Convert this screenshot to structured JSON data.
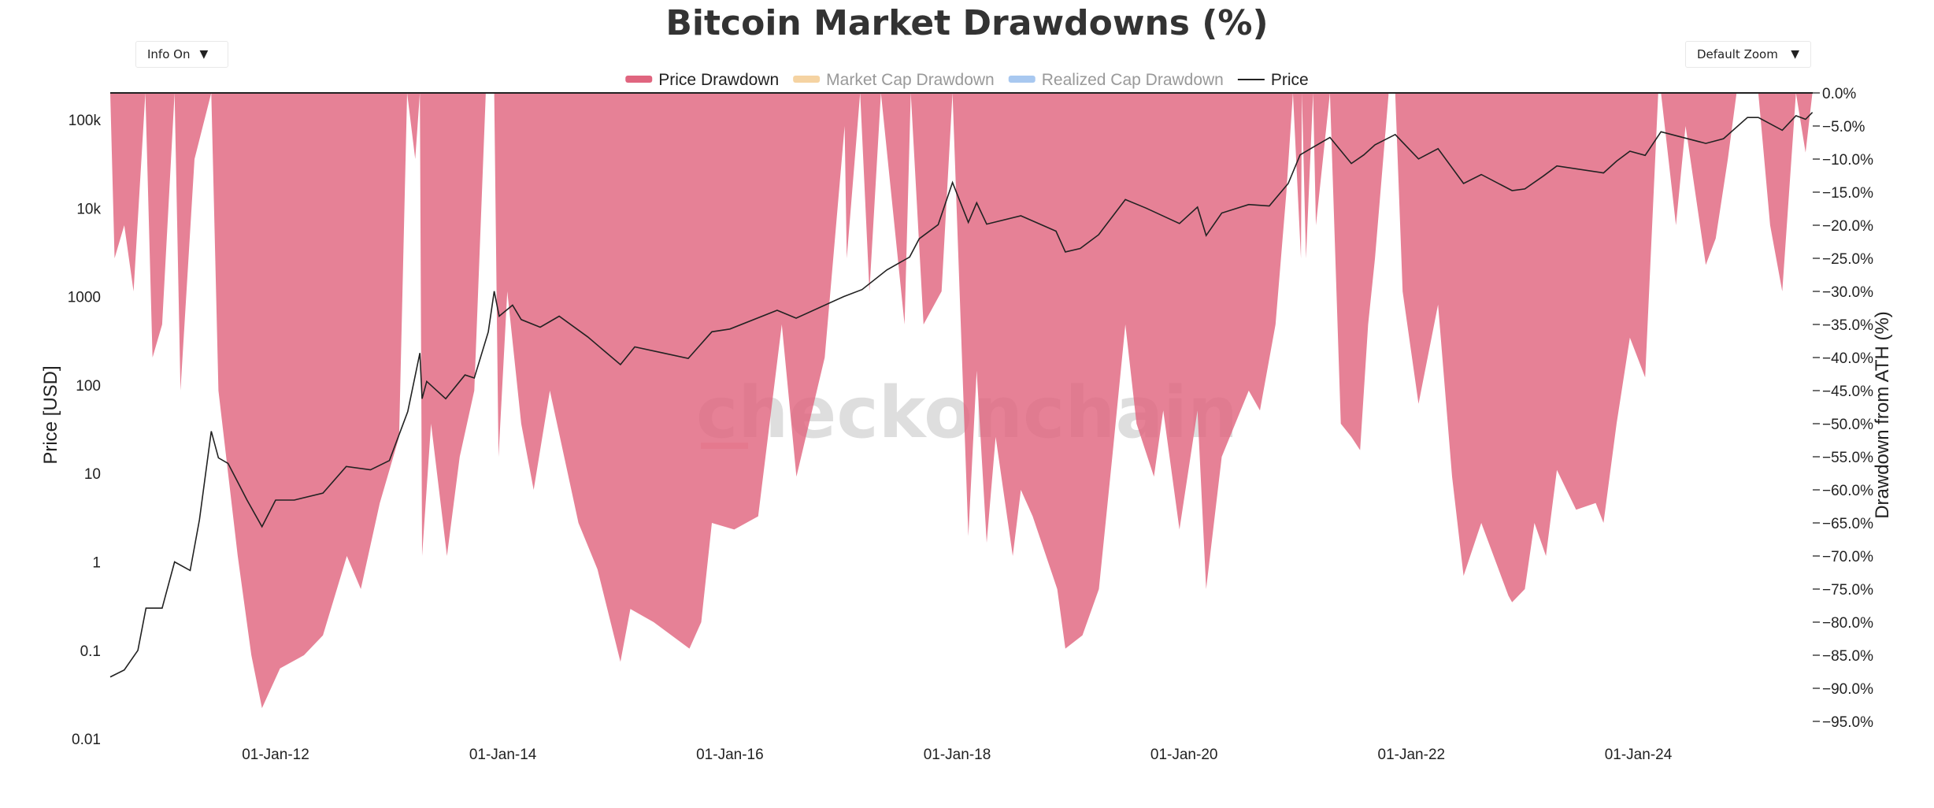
{
  "controls": {
    "info_label": "Info On",
    "zoom_label": "Default Zoom",
    "caret": "▼"
  },
  "watermark": "checkonchain",
  "colors": {
    "drawdown_fill": "#e0657f",
    "market_cap": "#f5d3a2",
    "realized_cap": "#a8c8f0",
    "price_line": "#222222",
    "axis": "#222222"
  },
  "chart_data": {
    "type": "area",
    "title": "Bitcoin Market Drawdowns (%)",
    "legend_position": "top-center",
    "legend": [
      {
        "name": "Price Drawdown",
        "kind": "area",
        "color": "#e0657f",
        "active": true
      },
      {
        "name": "Market Cap Drawdown",
        "kind": "area",
        "color": "#f5d3a2",
        "active": false
      },
      {
        "name": "Realized Cap Drawdown",
        "kind": "area",
        "color": "#a8c8f0",
        "active": false
      },
      {
        "name": "Price",
        "kind": "line",
        "color": "#222222",
        "active": true
      }
    ],
    "x_axis": {
      "type": "date",
      "range": [
        "2010-07-18",
        "2025-07-15"
      ],
      "ticks": [
        {
          "date": "2012-01-01",
          "label": "01-Jan-12"
        },
        {
          "date": "2014-01-01",
          "label": "01-Jan-14"
        },
        {
          "date": "2016-01-01",
          "label": "01-Jan-16"
        },
        {
          "date": "2018-01-01",
          "label": "01-Jan-18"
        },
        {
          "date": "2020-01-01",
          "label": "01-Jan-20"
        },
        {
          "date": "2022-01-01",
          "label": "01-Jan-22"
        },
        {
          "date": "2024-01-01",
          "label": "01-Jan-24"
        }
      ]
    },
    "y_left": {
      "label": "Price [USD]",
      "scale": "log",
      "range": [
        0.01,
        200000
      ],
      "ticks": [
        {
          "value": 100000,
          "label": "100k"
        },
        {
          "value": 10000,
          "label": "10k"
        },
        {
          "value": 1000,
          "label": "1000"
        },
        {
          "value": 100,
          "label": "100"
        },
        {
          "value": 10,
          "label": "10"
        },
        {
          "value": 1,
          "label": "1"
        },
        {
          "value": 0.1,
          "label": "0.1"
        },
        {
          "value": 0.01,
          "label": "0.01"
        }
      ]
    },
    "y_right": {
      "label": "Drawdown from ATH (%)",
      "scale": "linear",
      "range": [
        -100,
        0
      ],
      "ticks": [
        {
          "value": 0,
          "label": "0.0%"
        },
        {
          "value": -5,
          "label": "−5.0%"
        },
        {
          "value": -10,
          "label": "−10.0%"
        },
        {
          "value": -15,
          "label": "−15.0%"
        },
        {
          "value": -20,
          "label": "−20.0%"
        },
        {
          "value": -25,
          "label": "−25.0%"
        },
        {
          "value": -30,
          "label": "−30.0%"
        },
        {
          "value": -35,
          "label": "−35.0%"
        },
        {
          "value": -40,
          "label": "−40.0%"
        },
        {
          "value": -45,
          "label": "−45.0%"
        },
        {
          "value": -50,
          "label": "−50.0%"
        },
        {
          "value": -55,
          "label": "−55.0%"
        },
        {
          "value": -60,
          "label": "−60.0%"
        },
        {
          "value": -65,
          "label": "−65.0%"
        },
        {
          "value": -70,
          "label": "−70.0%"
        },
        {
          "value": -75,
          "label": "−75.0%"
        },
        {
          "value": -80,
          "label": "−80.0%"
        },
        {
          "value": -85,
          "label": "−85.0%"
        },
        {
          "value": -90,
          "label": "−90.0%"
        },
        {
          "value": -95,
          "label": "−95.0%"
        }
      ]
    },
    "series": [
      {
        "name": "Price",
        "axis": "left",
        "points": [
          [
            "2010-07-18",
            0.05
          ],
          [
            "2010-09-01",
            0.06
          ],
          [
            "2010-10-15",
            0.1
          ],
          [
            "2010-11-10",
            0.3
          ],
          [
            "2011-01-01",
            0.3
          ],
          [
            "2011-02-10",
            1.0
          ],
          [
            "2011-04-01",
            0.8
          ],
          [
            "2011-05-01",
            3
          ],
          [
            "2011-06-08",
            30
          ],
          [
            "2011-07-01",
            15
          ],
          [
            "2011-08-01",
            13
          ],
          [
            "2011-09-01",
            8
          ],
          [
            "2011-10-01",
            5
          ],
          [
            "2011-11-18",
            2.5
          ],
          [
            "2012-01-01",
            5
          ],
          [
            "2012-03-01",
            5
          ],
          [
            "2012-06-01",
            6
          ],
          [
            "2012-08-15",
            12
          ],
          [
            "2012-11-01",
            11
          ],
          [
            "2013-01-01",
            14
          ],
          [
            "2013-03-01",
            50
          ],
          [
            "2013-04-09",
            230
          ],
          [
            "2013-04-16",
            70
          ],
          [
            "2013-05-01",
            110
          ],
          [
            "2013-07-01",
            70
          ],
          [
            "2013-09-01",
            130
          ],
          [
            "2013-10-01",
            120
          ],
          [
            "2013-11-15",
            400
          ],
          [
            "2013-12-04",
            1150
          ],
          [
            "2013-12-20",
            600
          ],
          [
            "2014-02-01",
            800
          ],
          [
            "2014-03-01",
            550
          ],
          [
            "2014-05-01",
            450
          ],
          [
            "2014-07-01",
            600
          ],
          [
            "2014-10-01",
            350
          ],
          [
            "2015-01-14",
            170
          ],
          [
            "2015-03-01",
            270
          ],
          [
            "2015-06-01",
            230
          ],
          [
            "2015-08-20",
            200
          ],
          [
            "2015-11-04",
            400
          ],
          [
            "2016-01-01",
            430
          ],
          [
            "2016-06-01",
            700
          ],
          [
            "2016-08-01",
            570
          ],
          [
            "2017-01-01",
            1000
          ],
          [
            "2017-03-01",
            1200
          ],
          [
            "2017-05-20",
            2000
          ],
          [
            "2017-08-01",
            2800
          ],
          [
            "2017-09-01",
            4500
          ],
          [
            "2017-11-01",
            6500
          ],
          [
            "2017-12-17",
            19500
          ],
          [
            "2018-02-06",
            6900
          ],
          [
            "2018-03-05",
            11500
          ],
          [
            "2018-04-06",
            6600
          ],
          [
            "2018-07-25",
            8200
          ],
          [
            "2018-11-15",
            5500
          ],
          [
            "2018-12-15",
            3200
          ],
          [
            "2019-02-01",
            3500
          ],
          [
            "2019-04-01",
            5000
          ],
          [
            "2019-06-26",
            12500
          ],
          [
            "2019-09-01",
            10000
          ],
          [
            "2019-12-17",
            6700
          ],
          [
            "2020-02-13",
            10300
          ],
          [
            "2020-03-12",
            4900
          ],
          [
            "2020-05-01",
            8800
          ],
          [
            "2020-07-27",
            11000
          ],
          [
            "2020-10-01",
            10600
          ],
          [
            "2020-12-01",
            19000
          ],
          [
            "2021-01-08",
            40000
          ],
          [
            "2021-02-15",
            48000
          ],
          [
            "2021-04-14",
            63000
          ],
          [
            "2021-06-22",
            32000
          ],
          [
            "2021-08-01",
            40000
          ],
          [
            "2021-09-06",
            52000
          ],
          [
            "2021-11-10",
            68000
          ],
          [
            "2022-01-24",
            36000
          ],
          [
            "2022-03-28",
            47000
          ],
          [
            "2022-06-18",
            19000
          ],
          [
            "2022-08-14",
            24000
          ],
          [
            "2022-11-21",
            15800
          ],
          [
            "2023-01-01",
            16500
          ],
          [
            "2023-03-01",
            23000
          ],
          [
            "2023-04-14",
            30000
          ],
          [
            "2023-09-11",
            25000
          ],
          [
            "2023-10-23",
            34000
          ],
          [
            "2023-12-05",
            44000
          ],
          [
            "2024-01-23",
            39500
          ],
          [
            "2024-03-14",
            73000
          ],
          [
            "2024-08-05",
            54000
          ],
          [
            "2024-10-01",
            61000
          ],
          [
            "2024-12-17",
            106000
          ],
          [
            "2025-01-21",
            106000
          ],
          [
            "2025-04-08",
            76000
          ],
          [
            "2025-05-22",
            111000
          ],
          [
            "2025-06-22",
            101000
          ],
          [
            "2025-07-14",
            121000
          ]
        ]
      },
      {
        "name": "Price Drawdown",
        "axis": "right",
        "points": [
          [
            "2010-07-18",
            0
          ],
          [
            "2010-08-01",
            -25
          ],
          [
            "2010-09-01",
            -20
          ],
          [
            "2010-10-01",
            -30
          ],
          [
            "2010-11-08",
            0
          ],
          [
            "2010-12-01",
            -40
          ],
          [
            "2011-01-01",
            -35
          ],
          [
            "2011-02-10",
            0
          ],
          [
            "2011-03-01",
            -45
          ],
          [
            "2011-04-15",
            -10
          ],
          [
            "2011-06-08",
            0
          ],
          [
            "2011-07-01",
            -45
          ],
          [
            "2011-09-01",
            -70
          ],
          [
            "2011-10-15",
            -85
          ],
          [
            "2011-11-18",
            -93
          ],
          [
            "2012-01-15",
            -87
          ],
          [
            "2012-04-01",
            -85
          ],
          [
            "2012-06-01",
            -82
          ],
          [
            "2012-08-17",
            -70
          ],
          [
            "2012-10-01",
            -75
          ],
          [
            "2012-12-01",
            -62
          ],
          [
            "2013-02-01",
            -52
          ],
          [
            "2013-02-27",
            0
          ],
          [
            "2013-03-25",
            -10
          ],
          [
            "2013-04-09",
            0
          ],
          [
            "2013-04-16",
            -70
          ],
          [
            "2013-05-15",
            -50
          ],
          [
            "2013-07-05",
            -70
          ],
          [
            "2013-08-15",
            -55
          ],
          [
            "2013-10-01",
            -45
          ],
          [
            "2013-11-07",
            0
          ],
          [
            "2013-12-04",
            0
          ],
          [
            "2013-12-18",
            -55
          ],
          [
            "2014-01-15",
            -30
          ],
          [
            "2014-03-01",
            -50
          ],
          [
            "2014-04-10",
            -60
          ],
          [
            "2014-06-01",
            -45
          ],
          [
            "2014-09-01",
            -65
          ],
          [
            "2014-11-01",
            -72
          ],
          [
            "2015-01-14",
            -86
          ],
          [
            "2015-02-15",
            -78
          ],
          [
            "2015-05-01",
            -80
          ],
          [
            "2015-08-24",
            -84
          ],
          [
            "2015-10-01",
            -80
          ],
          [
            "2015-11-04",
            -65
          ],
          [
            "2016-01-15",
            -66
          ],
          [
            "2016-04-01",
            -64
          ],
          [
            "2016-06-16",
            -35
          ],
          [
            "2016-08-02",
            -58
          ],
          [
            "2016-11-01",
            -40
          ],
          [
            "2017-01-04",
            -5
          ],
          [
            "2017-01-11",
            -25
          ],
          [
            "2017-02-23",
            0
          ],
          [
            "2017-03-25",
            -30
          ],
          [
            "2017-05-01",
            0
          ],
          [
            "2017-07-16",
            -35
          ],
          [
            "2017-08-05",
            0
          ],
          [
            "2017-09-15",
            -35
          ],
          [
            "2017-11-12",
            -30
          ],
          [
            "2017-12-17",
            0
          ],
          [
            "2018-02-06",
            -67
          ],
          [
            "2018-03-05",
            -42
          ],
          [
            "2018-04-06",
            -68
          ],
          [
            "2018-05-05",
            -52
          ],
          [
            "2018-06-29",
            -70
          ],
          [
            "2018-07-25",
            -60
          ],
          [
            "2018-09-01",
            -64
          ],
          [
            "2018-11-19",
            -75
          ],
          [
            "2018-12-15",
            -84
          ],
          [
            "2019-02-08",
            -82
          ],
          [
            "2019-04-02",
            -75
          ],
          [
            "2019-05-15",
            -55
          ],
          [
            "2019-06-26",
            -35
          ],
          [
            "2019-08-01",
            -50
          ],
          [
            "2019-09-26",
            -58
          ],
          [
            "2019-10-26",
            -48
          ],
          [
            "2019-12-17",
            -66
          ],
          [
            "2020-02-13",
            -48
          ],
          [
            "2020-03-12",
            -75
          ],
          [
            "2020-05-01",
            -55
          ],
          [
            "2020-07-27",
            -45
          ],
          [
            "2020-09-01",
            -48
          ],
          [
            "2020-10-21",
            -35
          ],
          [
            "2020-11-25",
            -15
          ],
          [
            "2020-12-16",
            0
          ],
          [
            "2021-01-11",
            -25
          ],
          [
            "2021-01-14",
            0
          ],
          [
            "2021-01-27",
            -25
          ],
          [
            "2021-02-19",
            0
          ],
          [
            "2021-02-28",
            -20
          ],
          [
            "2021-04-14",
            0
          ],
          [
            "2021-05-19",
            -50
          ],
          [
            "2021-06-22",
            -52
          ],
          [
            "2021-07-20",
            -54
          ],
          [
            "2021-08-15",
            -35
          ],
          [
            "2021-09-06",
            -25
          ],
          [
            "2021-10-20",
            0
          ],
          [
            "2021-11-10",
            0
          ],
          [
            "2021-12-04",
            -30
          ],
          [
            "2022-01-24",
            -47
          ],
          [
            "2022-03-28",
            -32
          ],
          [
            "2022-05-12",
            -58
          ],
          [
            "2022-06-18",
            -73
          ],
          [
            "2022-08-14",
            -65
          ],
          [
            "2022-11-09",
            -76
          ],
          [
            "2022-11-21",
            -77
          ],
          [
            "2023-01-01",
            -75
          ],
          [
            "2023-02-01",
            -65
          ],
          [
            "2023-03-10",
            -70
          ],
          [
            "2023-04-14",
            -57
          ],
          [
            "2023-06-15",
            -63
          ],
          [
            "2023-08-17",
            -62
          ],
          [
            "2023-09-11",
            -65
          ],
          [
            "2023-10-23",
            -50
          ],
          [
            "2023-12-05",
            -37
          ],
          [
            "2024-01-23",
            -43
          ],
          [
            "2024-03-05",
            0
          ],
          [
            "2024-03-14",
            0
          ],
          [
            "2024-05-01",
            -20
          ],
          [
            "2024-06-01",
            -5
          ],
          [
            "2024-08-05",
            -26
          ],
          [
            "2024-09-06",
            -22
          ],
          [
            "2024-10-15",
            -10
          ],
          [
            "2024-11-12",
            0
          ],
          [
            "2024-12-17",
            0
          ],
          [
            "2025-01-21",
            0
          ],
          [
            "2025-02-28",
            -20
          ],
          [
            "2025-04-08",
            -30
          ],
          [
            "2025-05-22",
            0
          ],
          [
            "2025-06-22",
            -9
          ],
          [
            "2025-07-14",
            0
          ]
        ]
      }
    ]
  }
}
